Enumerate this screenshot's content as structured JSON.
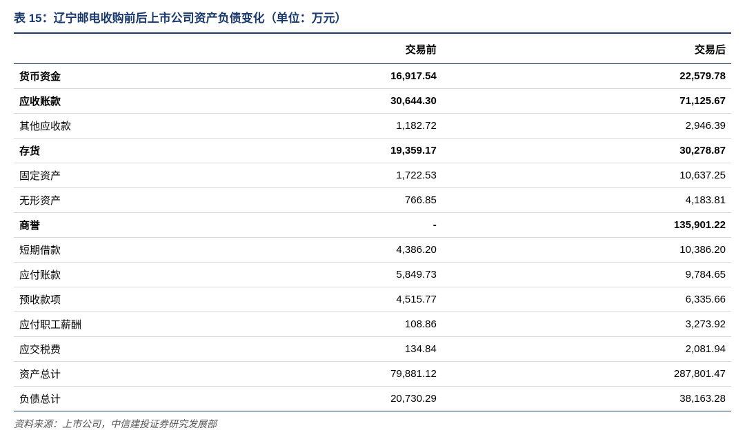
{
  "title": "表 15：辽宁邮电收购前后上市公司资产负债变化（单位：万元）",
  "columns": {
    "col0": "",
    "col1": "交易前",
    "col2": "交易后"
  },
  "rows": [
    {
      "label": "货币资金",
      "before": "16,917.54",
      "after": "22,579.78",
      "bold": true
    },
    {
      "label": "应收账款",
      "before": "30,644.30",
      "after": "71,125.67",
      "bold": true
    },
    {
      "label": "其他应收款",
      "before": "1,182.72",
      "after": "2,946.39",
      "bold": false
    },
    {
      "label": "存货",
      "before": "19,359.17",
      "after": "30,278.87",
      "bold": true
    },
    {
      "label": "固定资产",
      "before": "1,722.53",
      "after": "10,637.25",
      "bold": false
    },
    {
      "label": "无形资产",
      "before": "766.85",
      "after": "4,183.81",
      "bold": false
    },
    {
      "label": "商誉",
      "before": "-",
      "after": "135,901.22",
      "bold": true
    },
    {
      "label": "短期借款",
      "before": "4,386.20",
      "after": "10,386.20",
      "bold": false
    },
    {
      "label": "应付账款",
      "before": "5,849.73",
      "after": "9,784.65",
      "bold": false
    },
    {
      "label": "预收款项",
      "before": "4,515.77",
      "after": "6,335.66",
      "bold": false
    },
    {
      "label": "应付职工薪酬",
      "before": "108.86",
      "after": "3,273.92",
      "bold": false
    },
    {
      "label": "应交税费",
      "before": "134.84",
      "after": "2,081.94",
      "bold": false
    },
    {
      "label": "资产总计",
      "before": "79,881.12",
      "after": "287,801.47",
      "bold": false
    },
    {
      "label": "负债总计",
      "before": "20,730.29",
      "after": "38,163.28",
      "bold": false
    }
  ],
  "source": "资料来源：上市公司，中信建投证券研究发展部",
  "styling": {
    "title_color": "#1a3a6e",
    "title_fontsize": 17,
    "header_border_color": "#1a3a6e",
    "row_border_color": "#d8d8d8",
    "background_color": "#ffffff",
    "body_fontsize": 15,
    "source_fontsize": 14,
    "source_color": "#555555",
    "col_widths": [
      "240px",
      "auto",
      "auto"
    ]
  }
}
